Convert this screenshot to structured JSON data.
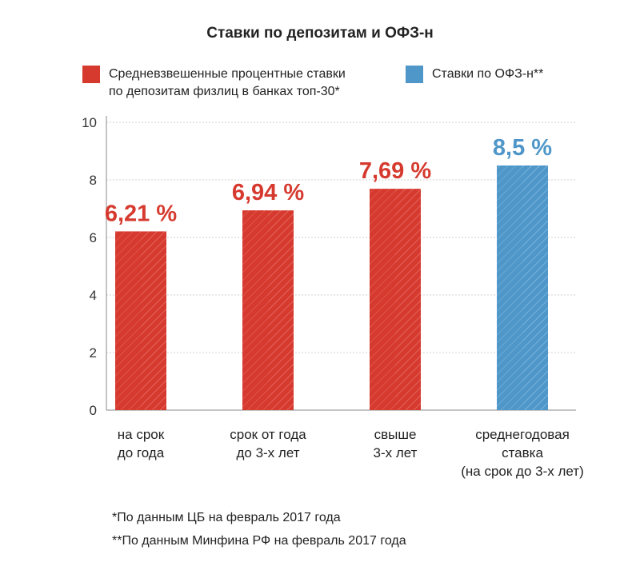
{
  "chart_data": {
    "type": "bar",
    "title": "Ставки по депозитам и ОФЗ-н",
    "categories": [
      [
        "на срок",
        "до года"
      ],
      [
        "срок от года",
        "до 3-х лет"
      ],
      [
        "свыше",
        "3-х лет"
      ],
      [
        "среднегодовая",
        "ставка",
        "(на срок до 3-х лет)"
      ]
    ],
    "values": [
      6.21,
      6.94,
      7.69,
      8.5
    ],
    "value_labels": [
      "6,21 %",
      "6,94 %",
      "7,69 %",
      "8,5 %"
    ],
    "series_of_bar": [
      0,
      0,
      0,
      1
    ],
    "series": [
      {
        "name_lines": [
          "Средневзвешенные процентные ставки",
          "по депозитам физлиц в банках топ-30*"
        ],
        "color": "#d63a2f"
      },
      {
        "name_lines": [
          "Ставки по ОФЗ-н**"
        ],
        "color": "#4f97c9"
      }
    ],
    "ylim": [
      0,
      10
    ],
    "yticks": [
      "0",
      "2",
      "4",
      "6",
      "8",
      "10"
    ],
    "grid": true,
    "legend_position": "top",
    "xlabel": "",
    "ylabel": ""
  },
  "footnotes": [
    "*По данным ЦБ на февраль 2017 года",
    "**По данным Минфина РФ на февраль 2017 года"
  ]
}
